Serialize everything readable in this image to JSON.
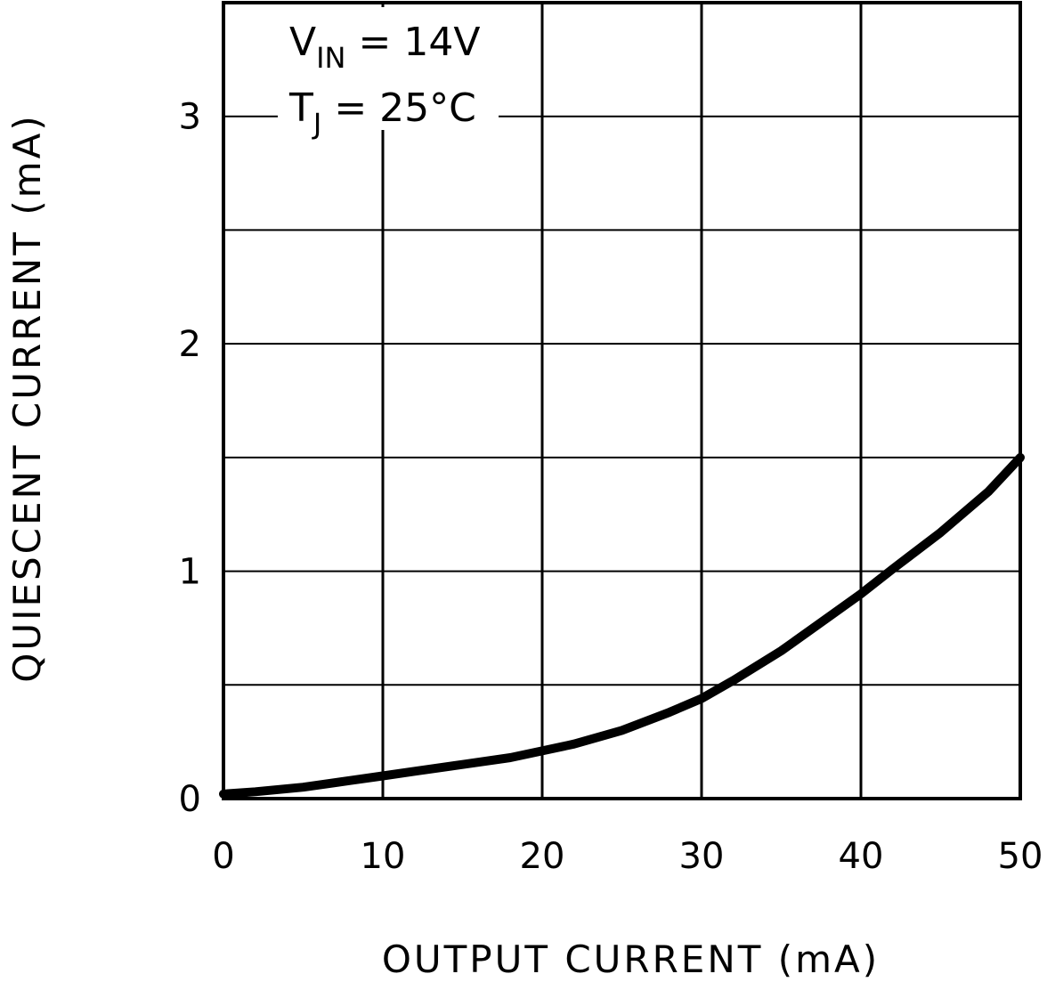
{
  "chart_data": {
    "type": "line",
    "title": "",
    "xlabel": "OUTPUT CURRENT (mA)",
    "ylabel": "QUIESCENT CURRENT (mA)",
    "xlim": [
      0,
      50
    ],
    "ylim": [
      0,
      3.5
    ],
    "x_ticks": [
      0,
      10,
      20,
      30,
      40,
      50
    ],
    "x_tick_labels": [
      "0",
      "10",
      "20",
      "30",
      "40",
      "50"
    ],
    "y_ticks": [
      0,
      1,
      2,
      3
    ],
    "y_tick_labels": [
      "0",
      "1",
      "2",
      "3"
    ],
    "grid": true,
    "grid_x_step": 10,
    "grid_y_step": 0.5,
    "annotations": [
      {
        "main": "V",
        "sub": "IN",
        "rest": " = 14V"
      },
      {
        "main": "T",
        "sub": "J",
        "rest": " = 25°C"
      }
    ],
    "series": [
      {
        "x": [
          0,
          2,
          5,
          8,
          10,
          12,
          15,
          18,
          20,
          22,
          25,
          28,
          30,
          32,
          35,
          38,
          40,
          42,
          45,
          48,
          50
        ],
        "y": [
          0.02,
          0.03,
          0.05,
          0.08,
          0.1,
          0.12,
          0.15,
          0.18,
          0.21,
          0.24,
          0.3,
          0.38,
          0.44,
          0.52,
          0.65,
          0.8,
          0.9,
          1.01,
          1.17,
          1.35,
          1.5
        ]
      }
    ],
    "colors": {
      "line": "#000000",
      "grid": "#000000",
      "background": "#ffffff"
    }
  }
}
